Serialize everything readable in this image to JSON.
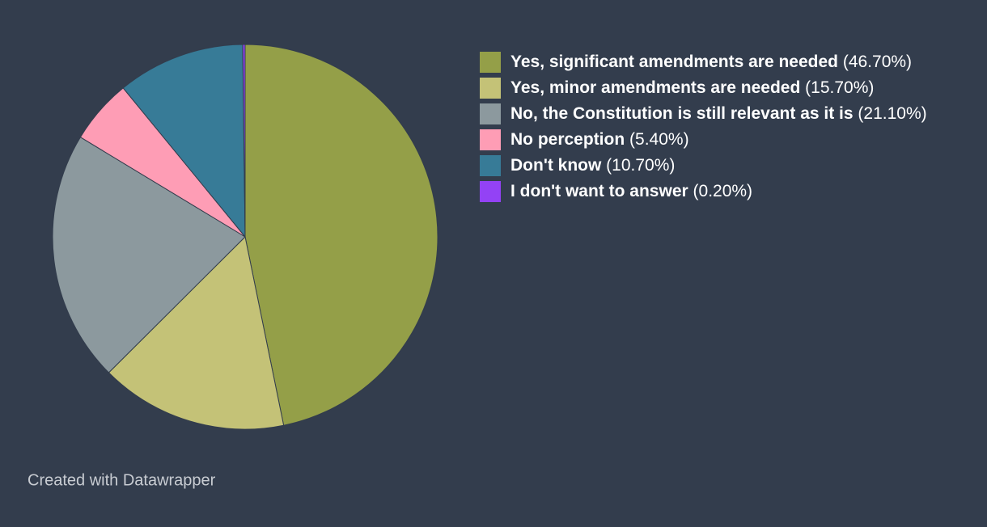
{
  "chart_data": {
    "type": "pie",
    "categories": [
      "Yes, significant amendments are needed",
      "Yes, minor amendments are needed",
      "No, the Constitution is still relevant as it is",
      "No perception",
      "Don't know",
      "I don't want to answer"
    ],
    "values": [
      46.7,
      15.7,
      21.1,
      5.4,
      10.7,
      0.2
    ],
    "value_labels": [
      "(46.70%)",
      "(15.70%)",
      "(21.10%)",
      "(5.40%)",
      "(10.70%)",
      "(0.20%)"
    ],
    "colors": [
      "#949f48",
      "#c4c277",
      "#8c999e",
      "#fe9db5",
      "#377b97",
      "#9342f5"
    ],
    "legend": "right",
    "footer": "Created with Datawrapper"
  }
}
